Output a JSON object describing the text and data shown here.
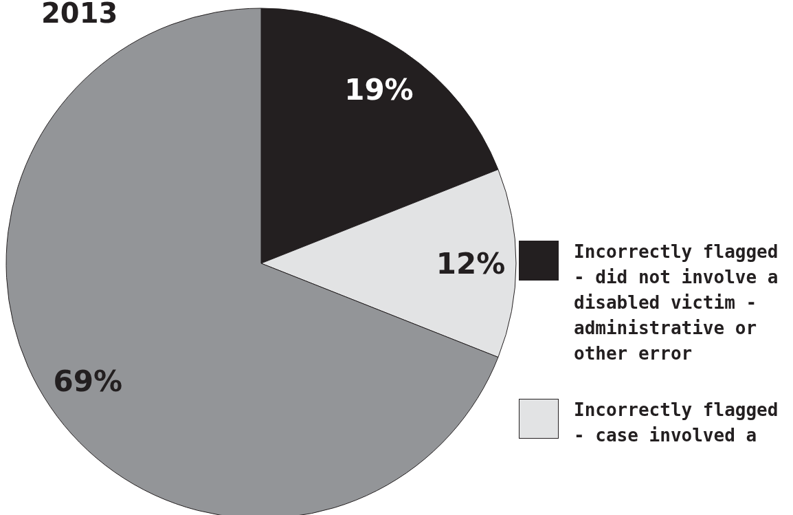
{
  "chart_data": {
    "type": "pie",
    "title": "2013",
    "categories": [
      "Incorrectly flagged - did not involve a disabled victim - administrative or other error",
      "Incorrectly flagged - case involved a",
      null
    ],
    "values": [
      19,
      12,
      69
    ],
    "colors": [
      "#231f20",
      "#e2e3e4",
      "#939598"
    ],
    "value_labels": [
      "19%",
      "12%",
      "69%"
    ],
    "legend": "right"
  }
}
